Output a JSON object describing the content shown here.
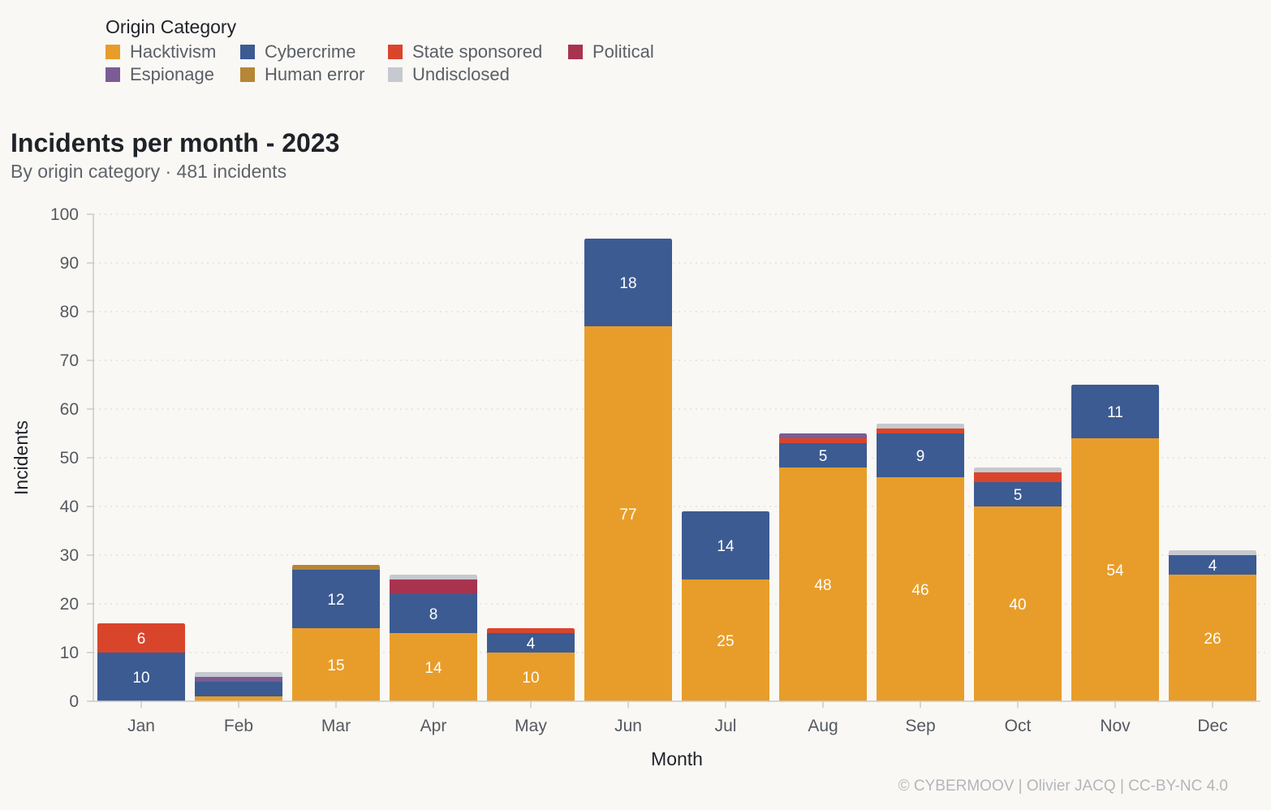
{
  "legend": {
    "title": "Origin Category"
  },
  "chart_data": {
    "type": "bar",
    "stacked": true,
    "title": "Incidents per month - 2023",
    "subtitle": "By origin category · 481 incidents",
    "xlabel": "Month",
    "ylabel": "Incidents",
    "ylim": [
      0,
      100
    ],
    "yticks": [
      0,
      10,
      20,
      30,
      40,
      50,
      60,
      70,
      80,
      90,
      100
    ],
    "grid": true,
    "legend_position": "top-left",
    "categories": [
      "Jan",
      "Feb",
      "Mar",
      "Apr",
      "May",
      "Jun",
      "Jul",
      "Aug",
      "Sep",
      "Oct",
      "Nov",
      "Dec"
    ],
    "series": [
      {
        "name": "Hacktivism",
        "color": "#e89d2a",
        "values": [
          0,
          1,
          15,
          14,
          10,
          77,
          25,
          48,
          46,
          40,
          54,
          26
        ]
      },
      {
        "name": "Cybercrime",
        "color": "#3c5b92",
        "values": [
          10,
          3,
          12,
          8,
          4,
          18,
          14,
          5,
          9,
          5,
          11,
          4
        ]
      },
      {
        "name": "State sponsored",
        "color": "#d9452b",
        "values": [
          6,
          0,
          0,
          0,
          1,
          0,
          0,
          1,
          1,
          2,
          0,
          0
        ]
      },
      {
        "name": "Political",
        "color": "#a8334e",
        "values": [
          0,
          0,
          0,
          3,
          0,
          0,
          0,
          0,
          0,
          0,
          0,
          0
        ]
      },
      {
        "name": "Espionage",
        "color": "#7b5c94",
        "values": [
          0,
          1,
          0,
          0,
          0,
          0,
          0,
          1,
          0,
          0,
          0,
          0
        ]
      },
      {
        "name": "Human error",
        "color": "#b58736",
        "values": [
          0,
          0,
          1,
          0,
          0,
          0,
          0,
          0,
          0,
          0,
          0,
          0
        ]
      },
      {
        "name": "Undisclosed",
        "color": "#c6c9cf",
        "values": [
          0,
          1,
          0,
          1,
          0,
          0,
          0,
          0,
          1,
          1,
          0,
          1
        ]
      }
    ]
  },
  "footer": {
    "credit": "© CYBERMOOV | Olivier JACQ | CC-BY-NC 4.0"
  }
}
